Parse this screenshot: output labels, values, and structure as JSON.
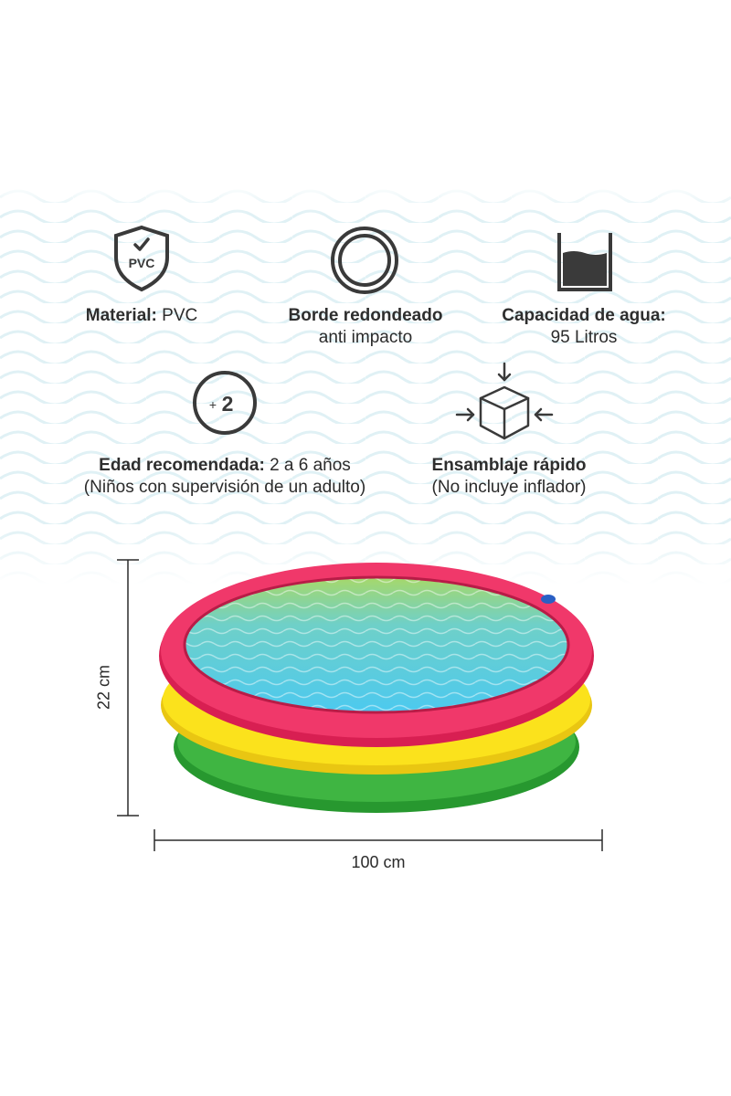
{
  "features": {
    "material": {
      "label": "Material:",
      "value": "PVC",
      "badge_text": "PVC",
      "icon": "shield-check-icon"
    },
    "border": {
      "title": "Borde redondeado",
      "subtitle": "anti impacto",
      "icon": "ring-icon"
    },
    "capacity": {
      "title": "Capacidad de agua:",
      "subtitle": "95 Litros",
      "icon": "water-container-icon"
    },
    "age": {
      "label": "Edad recomendada:",
      "value": "2 a 6 años",
      "subtitle": "(Niños con supervisión de un adulto)",
      "badge_plus": "+",
      "badge_number": "2",
      "icon": "age-badge-icon"
    },
    "assembly": {
      "title": "Ensamblaje rápido",
      "subtitle": "(No incluye inflador)",
      "icon": "box-compress-icon"
    }
  },
  "dimensions": {
    "height": "22 cm",
    "width": "100 cm"
  },
  "colors": {
    "ring_top": "#e8255a",
    "ring_middle": "#fbe21a",
    "ring_bottom": "#2fa33a",
    "water": "#5fd1f0",
    "text": "#2b2b2b",
    "wave": "#e2f2f6"
  }
}
